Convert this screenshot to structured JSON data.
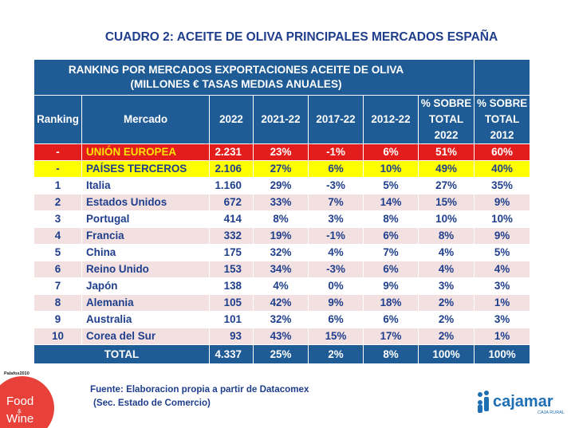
{
  "page_title": "CUADRO 2: ACEITE DE OLIVA PRINCIPALES MERCADOS ESPAÑA",
  "table": {
    "title_line1": "RANKING POR MERCADOS EXPORTACIONES  ACEITE DE OLIVA",
    "title_line2": "(MILLONES € TASAS MEDIAS ANUALES)",
    "headers": {
      "ranking": "Ranking",
      "mercado": "Mercado",
      "c2022": "2022",
      "c2021_22": "2021-22",
      "c2017_22": "2017-22",
      "c2012_22": "2012-22",
      "pct2022_l1": "% SOBRE",
      "pct2022_l2": "TOTAL",
      "pct2022_l3": "2022",
      "pct2012_l1": "% SOBRE",
      "pct2012_l2": "TOTAL",
      "pct2012_l3": "2012"
    },
    "rows": [
      {
        "rank": "-",
        "market": "UNIÓN EUROPEA",
        "v2022": "2.231",
        "g21": "23%",
        "g17": "-1%",
        "g12": "6%",
        "p22": "51%",
        "p12": "60%"
      },
      {
        "rank": "-",
        "market": "PAÍSES TERCEROS",
        "v2022": "2.106",
        "g21": "27%",
        "g17": "6%",
        "g12": "10%",
        "p22": "49%",
        "p12": "40%"
      },
      {
        "rank": "1",
        "market": "Italia",
        "v2022": "1.160",
        "g21": "29%",
        "g17": "-3%",
        "g12": "5%",
        "p22": "27%",
        "p12": "35%"
      },
      {
        "rank": "2",
        "market": "Estados Unidos",
        "v2022": "672",
        "g21": "33%",
        "g17": "7%",
        "g12": "14%",
        "p22": "15%",
        "p12": "9%"
      },
      {
        "rank": "3",
        "market": "Portugal",
        "v2022": "414",
        "g21": "8%",
        "g17": "3%",
        "g12": "8%",
        "p22": "10%",
        "p12": "10%"
      },
      {
        "rank": "4",
        "market": "Francia",
        "v2022": "332",
        "g21": "19%",
        "g17": "-1%",
        "g12": "6%",
        "p22": "8%",
        "p12": "9%"
      },
      {
        "rank": "5",
        "market": "China",
        "v2022": "175",
        "g21": "32%",
        "g17": "4%",
        "g12": "7%",
        "p22": "4%",
        "p12": "5%"
      },
      {
        "rank": "6",
        "market": "Reino Unido",
        "v2022": "153",
        "g21": "34%",
        "g17": "-3%",
        "g12": "6%",
        "p22": "4%",
        "p12": "4%"
      },
      {
        "rank": "7",
        "market": "Japón",
        "v2022": "138",
        "g21": "4%",
        "g17": "0%",
        "g12": "9%",
        "p22": "3%",
        "p12": "3%"
      },
      {
        "rank": "8",
        "market": "Alemania",
        "v2022": "105",
        "g21": "42%",
        "g17": "9%",
        "g12": "18%",
        "p22": "2%",
        "p12": "1%"
      },
      {
        "rank": "9",
        "market": "Australia",
        "v2022": "101",
        "g21": "32%",
        "g17": "6%",
        "g12": "6%",
        "p22": "2%",
        "p12": "3%"
      },
      {
        "rank": "10",
        "market": "Corea del Sur",
        "v2022": "93",
        "g21": "43%",
        "g17": "15%",
        "g12": "17%",
        "p22": "2%",
        "p12": "1%"
      }
    ],
    "total": {
      "label": "TOTAL",
      "v2022": "4.337",
      "g21": "25%",
      "g17": "2%",
      "g12": "8%",
      "p22": "100%",
      "p12": "100%"
    }
  },
  "source": {
    "line1": "Fuente: Elaboracion propia a partir de Datacomex",
    "line2": "(Sec. Estado de Comercio)"
  },
  "logos": {
    "foodwine_tag": "Palafox2010",
    "foodwine_l1": "Food",
    "foodwine_amp": "&",
    "foodwine_l2": "Wine",
    "cajamar_name": "cajamar",
    "cajamar_sub": "CAJA RURAL",
    "cajamar_color": "#1f6fb5",
    "foodwine_color": "#e8413a"
  },
  "colors": {
    "header_bg": "#1f5c96",
    "eu_bg": "#e31c1c",
    "third_bg": "#ffff00",
    "pink_row": "#f3e1e1",
    "text_blue": "#1f3e8c"
  }
}
